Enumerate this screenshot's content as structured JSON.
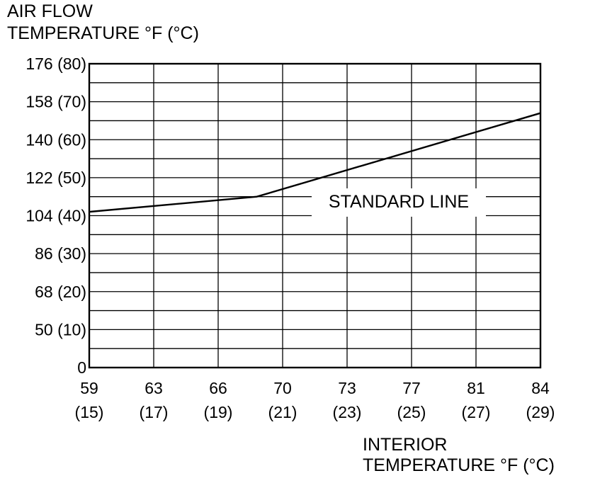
{
  "chart_data": {
    "type": "line",
    "title": "",
    "ylabel_line1": "AIR FLOW",
    "ylabel_line2": "TEMPERATURE °F (°C)",
    "xlabel_line1": "INTERIOR",
    "xlabel_line2": "TEMPERATURE °F (°C)",
    "x_ticks": [
      {
        "f": "59",
        "c": "(15)"
      },
      {
        "f": "63",
        "c": "(17)"
      },
      {
        "f": "66",
        "c": "(19)"
      },
      {
        "f": "70",
        "c": "(21)"
      },
      {
        "f": "73",
        "c": "(23)"
      },
      {
        "f": "77",
        "c": "(25)"
      },
      {
        "f": "81",
        "c": "(27)"
      },
      {
        "f": "84",
        "c": "(29)"
      }
    ],
    "y_ticks": [
      {
        "f": "0",
        "c": ""
      },
      {
        "f": "50",
        "c": "(10)"
      },
      {
        "f": "68",
        "c": "(20)"
      },
      {
        "f": "86",
        "c": "(30)"
      },
      {
        "f": "104",
        "c": "(40)"
      },
      {
        "f": "122",
        "c": "(50)"
      },
      {
        "f": "140",
        "c": "(60)"
      },
      {
        "f": "158",
        "c": "(70)"
      },
      {
        "f": "176",
        "c": "(80)"
      }
    ],
    "xlim_c": [
      15,
      29
    ],
    "ylim_c": [
      0,
      80
    ],
    "grid": true,
    "series": [
      {
        "name": "STANDARD LINE",
        "x_c": [
          15,
          20.2,
          29
        ],
        "y_c": [
          41,
          45,
          67
        ]
      }
    ]
  }
}
